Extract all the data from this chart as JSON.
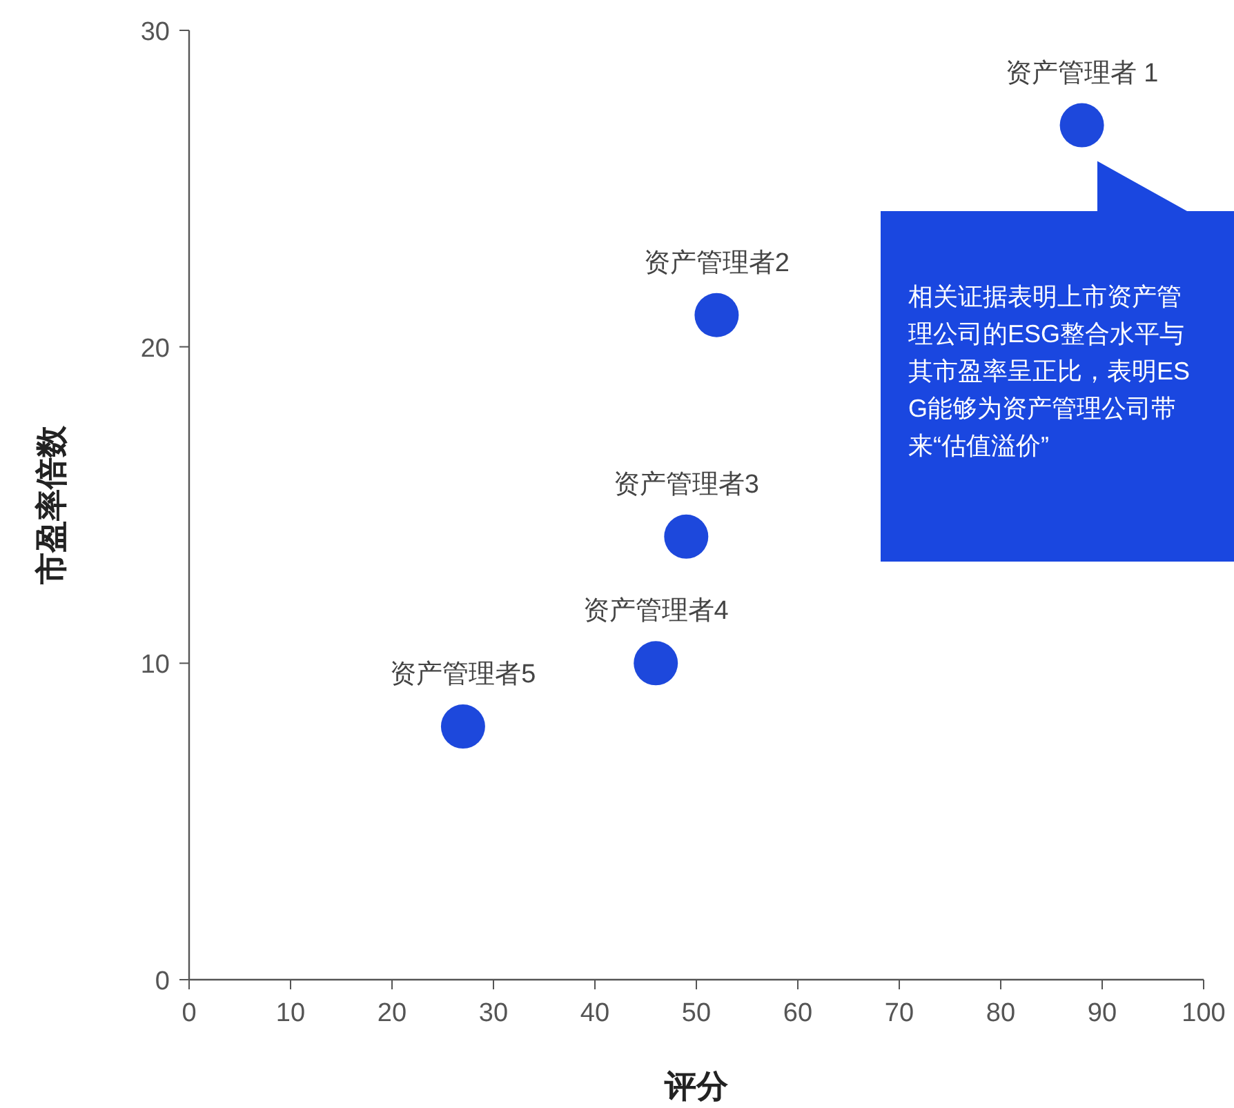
{
  "chart_data": {
    "type": "scatter",
    "xlabel": "评分",
    "ylabel": "市盈率倍数",
    "x": [
      88,
      52,
      49,
      46,
      27
    ],
    "values": [
      27,
      21,
      14,
      10,
      8
    ],
    "color": "#1d48dc",
    "xlim": [
      0,
      100
    ],
    "xticks": [
      0,
      10,
      20,
      30,
      40,
      50,
      60,
      70,
      80,
      90,
      100
    ],
    "ylim": [
      0,
      30
    ],
    "yticks": [
      0,
      10,
      20,
      30
    ],
    "grid": false,
    "marker": "circle",
    "annotations": [
      {
        "text": "资产管理者 1",
        "x": 88,
        "y": 27
      },
      {
        "text": "资产管理者2",
        "x": 52,
        "y": 21
      },
      {
        "text": "资产管理者3",
        "x": 49,
        "y": 14
      },
      {
        "text": "资产管理者4",
        "x": 46,
        "y": 10
      },
      {
        "text": "资产管理者5",
        "x": 27,
        "y": 8
      },
      "相关证据表明上市资产管理公司的ESG整合水平与其市盈率呈正比，表明ESG能够为资产管理公司带来“估值溢价”"
    ]
  }
}
